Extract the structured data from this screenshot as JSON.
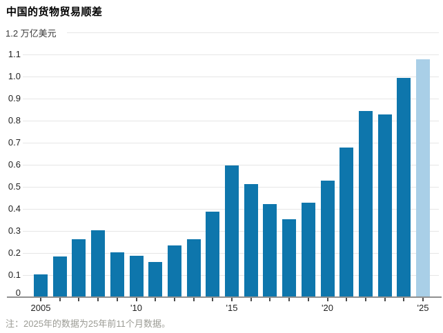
{
  "title": "中国的货物贸易顺差",
  "note": "注：2025年的数据为25年前11个月数据。",
  "chart_data": {
    "type": "bar",
    "title": "中国的货物贸易顺差",
    "unit_row": "1.2 万亿美元",
    "unit_label": "万亿美元",
    "categories": [
      2005,
      2006,
      2007,
      2008,
      2009,
      2010,
      2011,
      2012,
      2013,
      2014,
      2015,
      2016,
      2017,
      2018,
      2019,
      2020,
      2021,
      2022,
      2023,
      2024,
      2025
    ],
    "values": [
      0.1,
      0.18,
      0.26,
      0.3,
      0.2,
      0.185,
      0.155,
      0.23,
      0.26,
      0.385,
      0.595,
      0.51,
      0.42,
      0.35,
      0.425,
      0.525,
      0.675,
      0.84,
      0.825,
      0.99,
      1.075
    ],
    "ylim": [
      0,
      1.2
    ],
    "ytick_step": 0.1,
    "ytick_labels": [
      "0",
      "0.1",
      "0.2",
      "0.3",
      "0.4",
      "0.5",
      "0.6",
      "0.7",
      "0.8",
      "0.9",
      "1.0",
      "1.1"
    ],
    "top_tick_label": "1.2",
    "xticks": [
      {
        "year": 2005,
        "label": "2005"
      },
      {
        "year": 2010,
        "label": "'10"
      },
      {
        "year": 2015,
        "label": "'15"
      },
      {
        "year": 2020,
        "label": "'20"
      },
      {
        "year": 2025,
        "label": "'25"
      }
    ],
    "highlight_year": 2025,
    "grid": true,
    "legend": null,
    "note": "注：2025年的数据为25年前11个月数据。",
    "colors": {
      "bar": "#0e76ac",
      "highlight_bar": "#a9cfe7",
      "gridline": "#e6e6e6",
      "axis": "#8f8f8f",
      "tick": "#4a4a4a",
      "label_text": "#222222",
      "note_text": "#9b9b94"
    }
  }
}
